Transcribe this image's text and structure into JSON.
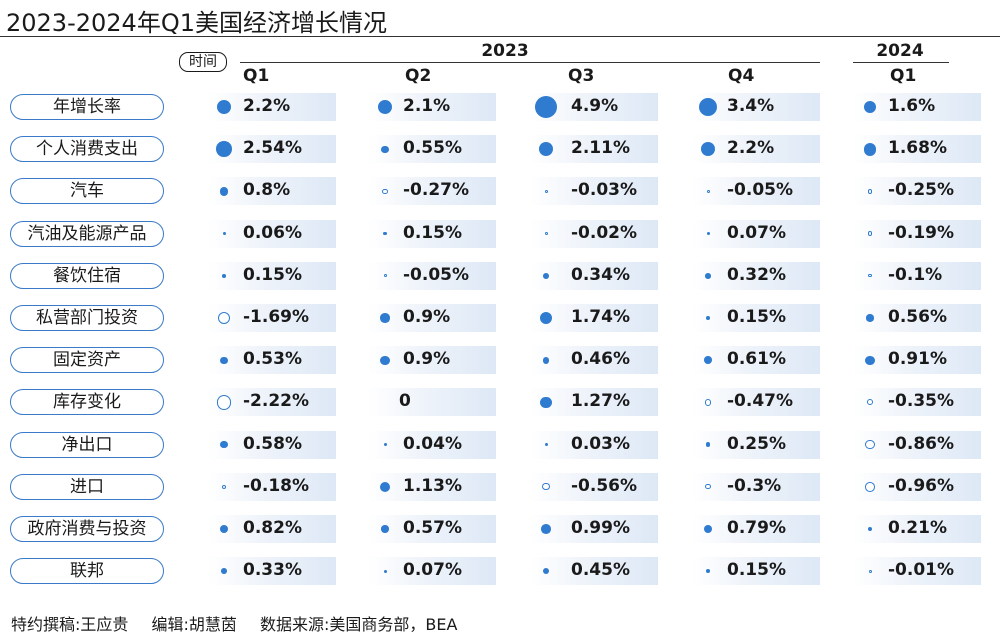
{
  "title": "2023-2024年Q1美国经济增长情况",
  "time_tag": "时间",
  "years": [
    {
      "label": "2023"
    },
    {
      "label": "2024"
    }
  ],
  "footer": {
    "writer": "特约撰稿:王应贵",
    "editor": "编辑:胡慧茵",
    "source": "数据来源:美国商务部，BEA"
  },
  "colors": {
    "accent": "#2f7bd0",
    "band": "#dde8f6",
    "label_border": "#3a7ac8"
  },
  "chart_data": {
    "type": "table",
    "title": "2023-2024年Q1美国经济增长情况",
    "columns": [
      {
        "year": "2023",
        "quarter": "Q1"
      },
      {
        "year": "2023",
        "quarter": "Q2"
      },
      {
        "year": "2023",
        "quarter": "Q3"
      },
      {
        "year": "2023",
        "quarter": "Q4"
      },
      {
        "year": "2024",
        "quarter": "Q1"
      }
    ],
    "unit": "%",
    "rows": [
      {
        "label": "年增长率",
        "values": [
          2.2,
          2.1,
          4.9,
          3.4,
          1.6
        ],
        "texts": [
          "2.2%",
          "2.1%",
          "4.9%",
          "3.4%",
          "1.6%"
        ]
      },
      {
        "label": "个人消费支出",
        "values": [
          2.54,
          0.55,
          2.11,
          2.2,
          1.68
        ],
        "texts": [
          "2.54%",
          "0.55%",
          "2.11%",
          "2.2%",
          "1.68%"
        ]
      },
      {
        "label": "汽车",
        "values": [
          0.8,
          -0.27,
          -0.03,
          -0.05,
          -0.25
        ],
        "texts": [
          "0.8%",
          "-0.27%",
          "-0.03%",
          "-0.05%",
          "-0.25%"
        ]
      },
      {
        "label": "汽油及能源产品",
        "values": [
          0.06,
          0.15,
          -0.02,
          0.07,
          -0.19
        ],
        "texts": [
          "0.06%",
          "0.15%",
          "-0.02%",
          "0.07%",
          "-0.19%"
        ]
      },
      {
        "label": "餐饮住宿",
        "values": [
          0.15,
          -0.05,
          0.34,
          0.32,
          -0.1
        ],
        "texts": [
          "0.15%",
          "-0.05%",
          "0.34%",
          "0.32%",
          "-0.1%"
        ]
      },
      {
        "label": "私营部门投资",
        "values": [
          -1.69,
          0.9,
          1.74,
          0.15,
          0.56
        ],
        "texts": [
          "-1.69%",
          "0.9%",
          "1.74%",
          "0.15%",
          "0.56%"
        ]
      },
      {
        "label": "固定资产",
        "values": [
          0.53,
          0.9,
          0.46,
          0.61,
          0.91
        ],
        "texts": [
          "0.53%",
          "0.9%",
          "0.46%",
          "0.61%",
          "0.91%"
        ]
      },
      {
        "label": "库存变化",
        "values": [
          -2.22,
          0,
          1.27,
          -0.47,
          -0.35
        ],
        "texts": [
          "-2.22%",
          "0",
          "1.27%",
          "-0.47%",
          "-0.35%"
        ]
      },
      {
        "label": "净出口",
        "values": [
          0.58,
          0.04,
          0.03,
          0.25,
          -0.86
        ],
        "texts": [
          "0.58%",
          "0.04%",
          "0.03%",
          "0.25%",
          "-0.86%"
        ]
      },
      {
        "label": "进口",
        "values": [
          -0.18,
          1.13,
          -0.56,
          -0.3,
          -0.96
        ],
        "texts": [
          "-0.18%",
          "1.13%",
          "-0.56%",
          "-0.3%",
          "-0.96%"
        ]
      },
      {
        "label": "政府消费与投资",
        "values": [
          0.82,
          0.57,
          0.99,
          0.79,
          0.21
        ],
        "texts": [
          "0.82%",
          "0.57%",
          "0.99%",
          "0.79%",
          "0.21%"
        ]
      },
      {
        "label": "联邦",
        "values": [
          0.33,
          0.07,
          0.45,
          0.15,
          -0.01
        ],
        "texts": [
          "0.33%",
          "0.07%",
          "0.45%",
          "0.15%",
          "-0.01%"
        ]
      }
    ]
  }
}
